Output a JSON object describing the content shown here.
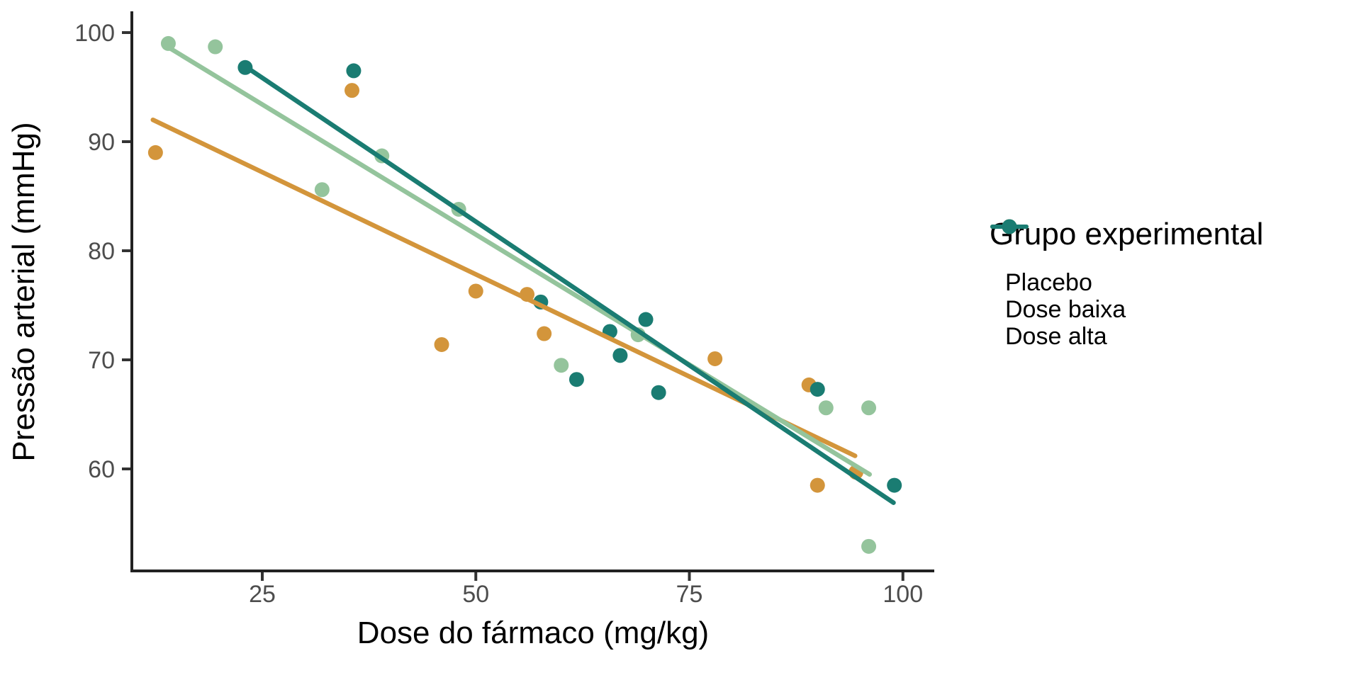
{
  "chart_data": {
    "type": "scatter",
    "title": "",
    "xlabel": "Dose do fármaco (mg/kg)",
    "ylabel": "Pressão arterial (mmHg)",
    "x_ticks": [
      "25",
      "50",
      "75",
      "100"
    ],
    "x_tick_values": [
      25,
      50,
      75,
      100
    ],
    "y_ticks": [
      "100",
      "90",
      "80",
      "70",
      "60"
    ],
    "y_tick_values": [
      100,
      90,
      80,
      70,
      60
    ],
    "xlim": [
      9.7,
      103.9
    ],
    "ylim": [
      50.6,
      101.8
    ],
    "grid": false,
    "legend_position": "right",
    "legend_title": "Grupo experimental",
    "series": [
      {
        "name": "Placebo",
        "color": "#D3953B",
        "points": [
          [
            12.5,
            89.0
          ],
          [
            35.5,
            94.7
          ],
          [
            46,
            71.4
          ],
          [
            50,
            76.3
          ],
          [
            56,
            76.0
          ],
          [
            58,
            72.4
          ],
          [
            78,
            70.1
          ],
          [
            89,
            67.7
          ],
          [
            90,
            58.5
          ],
          [
            94.5,
            59.7
          ]
        ],
        "trend": {
          "x1": 12.2,
          "y1": 92.0,
          "x2": 94.4,
          "y2": 61.2
        }
      },
      {
        "name": "Dose baixa",
        "color": "#94C49C",
        "points": [
          [
            14,
            99.0
          ],
          [
            19.5,
            98.7
          ],
          [
            32,
            85.6
          ],
          [
            39,
            88.7
          ],
          [
            48,
            83.8
          ],
          [
            60,
            69.5
          ],
          [
            69,
            72.3
          ],
          [
            91,
            65.6
          ],
          [
            96,
            65.6
          ],
          [
            96,
            52.9
          ]
        ],
        "trend": {
          "x1": 13.7,
          "y1": 98.8,
          "x2": 96.1,
          "y2": 59.5
        }
      },
      {
        "name": "Dose alta",
        "color": "#1A7C72",
        "points": [
          [
            23,
            96.8
          ],
          [
            35.7,
            96.5
          ],
          [
            57.6,
            75.3
          ],
          [
            61.8,
            68.2
          ],
          [
            65.7,
            72.6
          ],
          [
            66.9,
            70.4
          ],
          [
            69.9,
            73.7
          ],
          [
            71.4,
            67.0
          ],
          [
            90,
            67.3
          ],
          [
            99,
            58.5
          ]
        ],
        "trend": {
          "x1": 23.2,
          "y1": 96.8,
          "x2": 98.9,
          "y2": 56.9
        }
      }
    ],
    "style": {
      "point_radius": 10.5,
      "trend_width": 6.5,
      "axis_color": "#222222",
      "tick_color": "#333333"
    }
  }
}
